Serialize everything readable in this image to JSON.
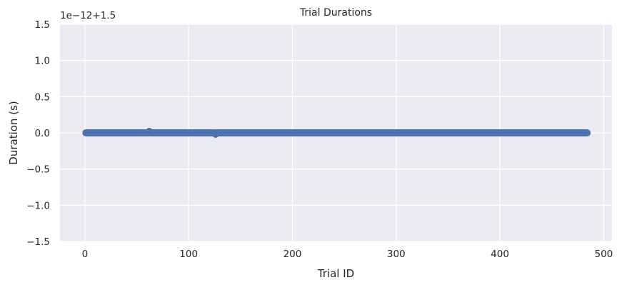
{
  "chart_data": {
    "type": "scatter",
    "title": "Trial Durations",
    "xlabel": "Trial ID",
    "ylabel": "Duration (s)",
    "offset_label": "1e−12+1.5",
    "xlim": [
      -24,
      508
    ],
    "ylim": [
      -1.5,
      1.5
    ],
    "x_ticks": [
      0,
      100,
      200,
      300,
      400,
      500
    ],
    "y_ticks": [
      -1.5,
      -1.0,
      -0.5,
      0.0,
      0.5,
      1.0,
      1.5
    ],
    "x_tick_labels": [
      "0",
      "100",
      "200",
      "300",
      "400",
      "500"
    ],
    "y_tick_labels": [
      "−1.5",
      "−1.0",
      "−0.5",
      "0.0",
      "0.5",
      "1.0",
      "1.5"
    ],
    "grid": true,
    "series": [
      {
        "name": "Duration",
        "color": "#4c72b0",
        "x_range": [
          1,
          484
        ],
        "baseline_value": 0.0,
        "outliers": [
          {
            "x": 62,
            "y": 0.02
          },
          {
            "x": 126,
            "y": -0.02
          }
        ]
      }
    ]
  },
  "colors": {
    "plot_background": "#eaeaf2",
    "grid": "#ffffff",
    "marker": "#4c72b0"
  }
}
